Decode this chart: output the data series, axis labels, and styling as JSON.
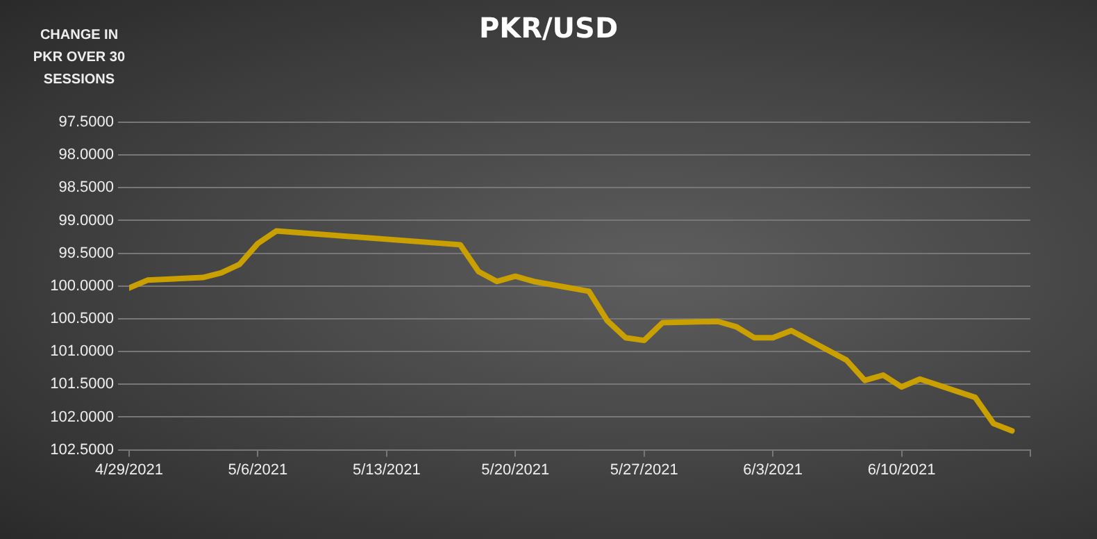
{
  "chart_data": {
    "type": "line",
    "title": "PKR/USD",
    "ylabel": "CHANGE IN PKR OVER 30 SESSIONS",
    "x": [
      "2021-04-29",
      "2021-04-30",
      "2021-05-03",
      "2021-05-04",
      "2021-05-05",
      "2021-05-06",
      "2021-05-07",
      "2021-05-17",
      "2021-05-18",
      "2021-05-19",
      "2021-05-20",
      "2021-05-21",
      "2021-05-24",
      "2021-05-25",
      "2021-05-26",
      "2021-05-27",
      "2021-05-28",
      "2021-05-31",
      "2021-06-01",
      "2021-06-02",
      "2021-06-03",
      "2021-06-04",
      "2021-06-07",
      "2021-06-08",
      "2021-06-09",
      "2021-06-10",
      "2021-06-11",
      "2021-06-14",
      "2021-06-15",
      "2021-06-16"
    ],
    "series": [
      {
        "color": "#c9a000",
        "values": [
          100.03,
          99.91,
          99.87,
          99.8,
          99.67,
          99.35,
          99.16,
          99.37,
          99.78,
          99.93,
          99.85,
          99.93,
          100.08,
          100.53,
          100.79,
          100.83,
          100.56,
          100.54,
          100.62,
          100.79,
          100.79,
          100.68,
          101.13,
          101.44,
          101.36,
          101.54,
          101.42,
          101.7,
          102.1,
          102.21
        ]
      }
    ],
    "xlim": [
      "2021-04-29",
      "2021-06-17"
    ],
    "xticks": [
      {
        "value": "2021-04-29",
        "label": "4/29/2021"
      },
      {
        "value": "2021-05-06",
        "label": "5/6/2021"
      },
      {
        "value": "2021-05-13",
        "label": "5/13/2021"
      },
      {
        "value": "2021-05-20",
        "label": "5/20/2021"
      },
      {
        "value": "2021-05-27",
        "label": "5/27/2021"
      },
      {
        "value": "2021-06-03",
        "label": "6/3/2021"
      },
      {
        "value": "2021-06-10",
        "label": "6/10/2021"
      },
      {
        "value": "2021-06-17",
        "label": null
      }
    ],
    "ylim": [
      102.5,
      97.5
    ],
    "yticks": [
      {
        "value": 97.5,
        "label": "97.5000"
      },
      {
        "value": 98,
        "label": "98.0000"
      },
      {
        "value": 98.5,
        "label": "98.5000"
      },
      {
        "value": 99,
        "label": "99.0000"
      },
      {
        "value": 99.5,
        "label": "99.5000"
      },
      {
        "value": 100,
        "label": "100.0000"
      },
      {
        "value": 100.5,
        "label": "100.5000"
      },
      {
        "value": 101,
        "label": "101.0000"
      },
      {
        "value": 101.5,
        "label": "101.5000"
      },
      {
        "value": 102,
        "label": "102.0000"
      },
      {
        "value": 102.5,
        "label": "102.5000"
      }
    ],
    "grid": "y",
    "legend": false,
    "marker": "none",
    "line_style": "solid"
  }
}
